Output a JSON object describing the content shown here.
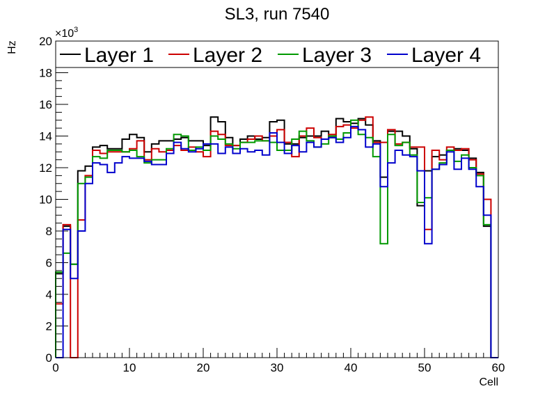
{
  "chart_data": {
    "type": "line",
    "style": "step-histogram",
    "title": "SL3, run 7540",
    "xlabel": "Cell",
    "ylabel": "Hz",
    "y_multiplier_label": "×10",
    "y_multiplier_exp": "3",
    "xlim": [
      0,
      60
    ],
    "ylim": [
      0,
      20
    ],
    "x_ticks": [
      0,
      10,
      20,
      30,
      40,
      50,
      60
    ],
    "y_ticks": [
      0,
      2,
      4,
      6,
      8,
      10,
      12,
      14,
      16,
      18,
      20
    ],
    "bin_width": 1,
    "legend_position": "top",
    "series": [
      {
        "name": "Layer 1",
        "color": "#000000",
        "values": [
          5.3,
          8.3,
          5.9,
          11.8,
          12.1,
          13.3,
          13.4,
          13.2,
          13.2,
          13.8,
          14.1,
          13.9,
          13.0,
          13.5,
          13.7,
          13.7,
          13.8,
          13.9,
          13.7,
          13.7,
          13.4,
          15.2,
          14.9,
          13.9,
          13.4,
          13.8,
          14.0,
          13.8,
          13.9,
          14.9,
          15.0,
          13.5,
          13.5,
          13.9,
          14.0,
          14.0,
          14.3,
          13.9,
          15.1,
          14.9,
          14.8,
          15.1,
          14.7,
          13.7,
          11.4,
          14.3,
          14.3,
          14.0,
          13.2,
          9.6,
          11.8,
          12.7,
          12.8,
          13.1,
          13.2,
          13.1,
          12.6,
          11.7,
          8.3,
          0
        ],
        "value_scale": "x1000"
      },
      {
        "name": "Layer 2",
        "color": "#cc0000",
        "values": [
          3.4,
          8.4,
          0,
          8.7,
          11.5,
          13.1,
          12.9,
          13.0,
          13.0,
          13.0,
          13.2,
          13.7,
          12.5,
          13.2,
          13.0,
          13.1,
          13.4,
          13.1,
          13.3,
          13.0,
          12.7,
          14.3,
          14.1,
          13.4,
          13.4,
          13.6,
          13.8,
          14.0,
          13.7,
          14.0,
          14.4,
          13.6,
          12.7,
          14.0,
          14.5,
          13.9,
          13.8,
          14.1,
          14.6,
          14.7,
          14.5,
          15.0,
          15.2,
          13.6,
          13.6,
          14.4,
          13.5,
          13.6,
          13.3,
          13.3,
          8.1,
          13.1,
          12.5,
          13.3,
          13.1,
          13.2,
          12.5,
          11.6,
          10.0,
          0
        ],
        "value_scale": "x1000"
      },
      {
        "name": "Layer 3",
        "color": "#009900",
        "values": [
          5.4,
          6.6,
          5.9,
          11.0,
          11.4,
          12.7,
          12.6,
          13.1,
          13.1,
          13.0,
          13.1,
          12.7,
          12.3,
          12.5,
          12.5,
          13.2,
          14.1,
          14.0,
          13.1,
          13.3,
          13.1,
          14.0,
          13.8,
          13.5,
          13.2,
          13.6,
          13.6,
          13.7,
          13.7,
          13.6,
          13.1,
          13.1,
          13.8,
          14.3,
          13.7,
          13.3,
          13.5,
          14.0,
          13.8,
          14.2,
          15.0,
          14.1,
          13.9,
          12.7,
          7.2,
          14.1,
          13.4,
          13.6,
          12.8,
          9.8,
          10.1,
          11.9,
          12.3,
          13.1,
          12.4,
          12.8,
          12.0,
          11.5,
          8.4,
          0
        ],
        "value_scale": "x1000"
      },
      {
        "name": "Layer 4",
        "color": "#0000cc",
        "values": [
          0,
          8.1,
          5.0,
          8.0,
          11.0,
          12.3,
          12.2,
          11.7,
          12.3,
          12.7,
          12.6,
          12.6,
          12.4,
          12.2,
          12.2,
          12.9,
          13.6,
          13.2,
          13.0,
          13.2,
          13.5,
          13.5,
          12.9,
          13.3,
          12.9,
          13.2,
          13.0,
          13.1,
          12.8,
          14.2,
          13.6,
          12.9,
          13.4,
          13.0,
          13.6,
          13.3,
          13.8,
          13.9,
          13.6,
          13.9,
          14.6,
          14.4,
          13.3,
          13.5,
          10.8,
          12.3,
          13.1,
          12.8,
          12.7,
          11.8,
          7.2,
          11.9,
          12.2,
          13.0,
          11.9,
          12.6,
          11.9,
          10.8,
          9.0,
          0
        ],
        "value_scale": "x1000"
      }
    ]
  }
}
